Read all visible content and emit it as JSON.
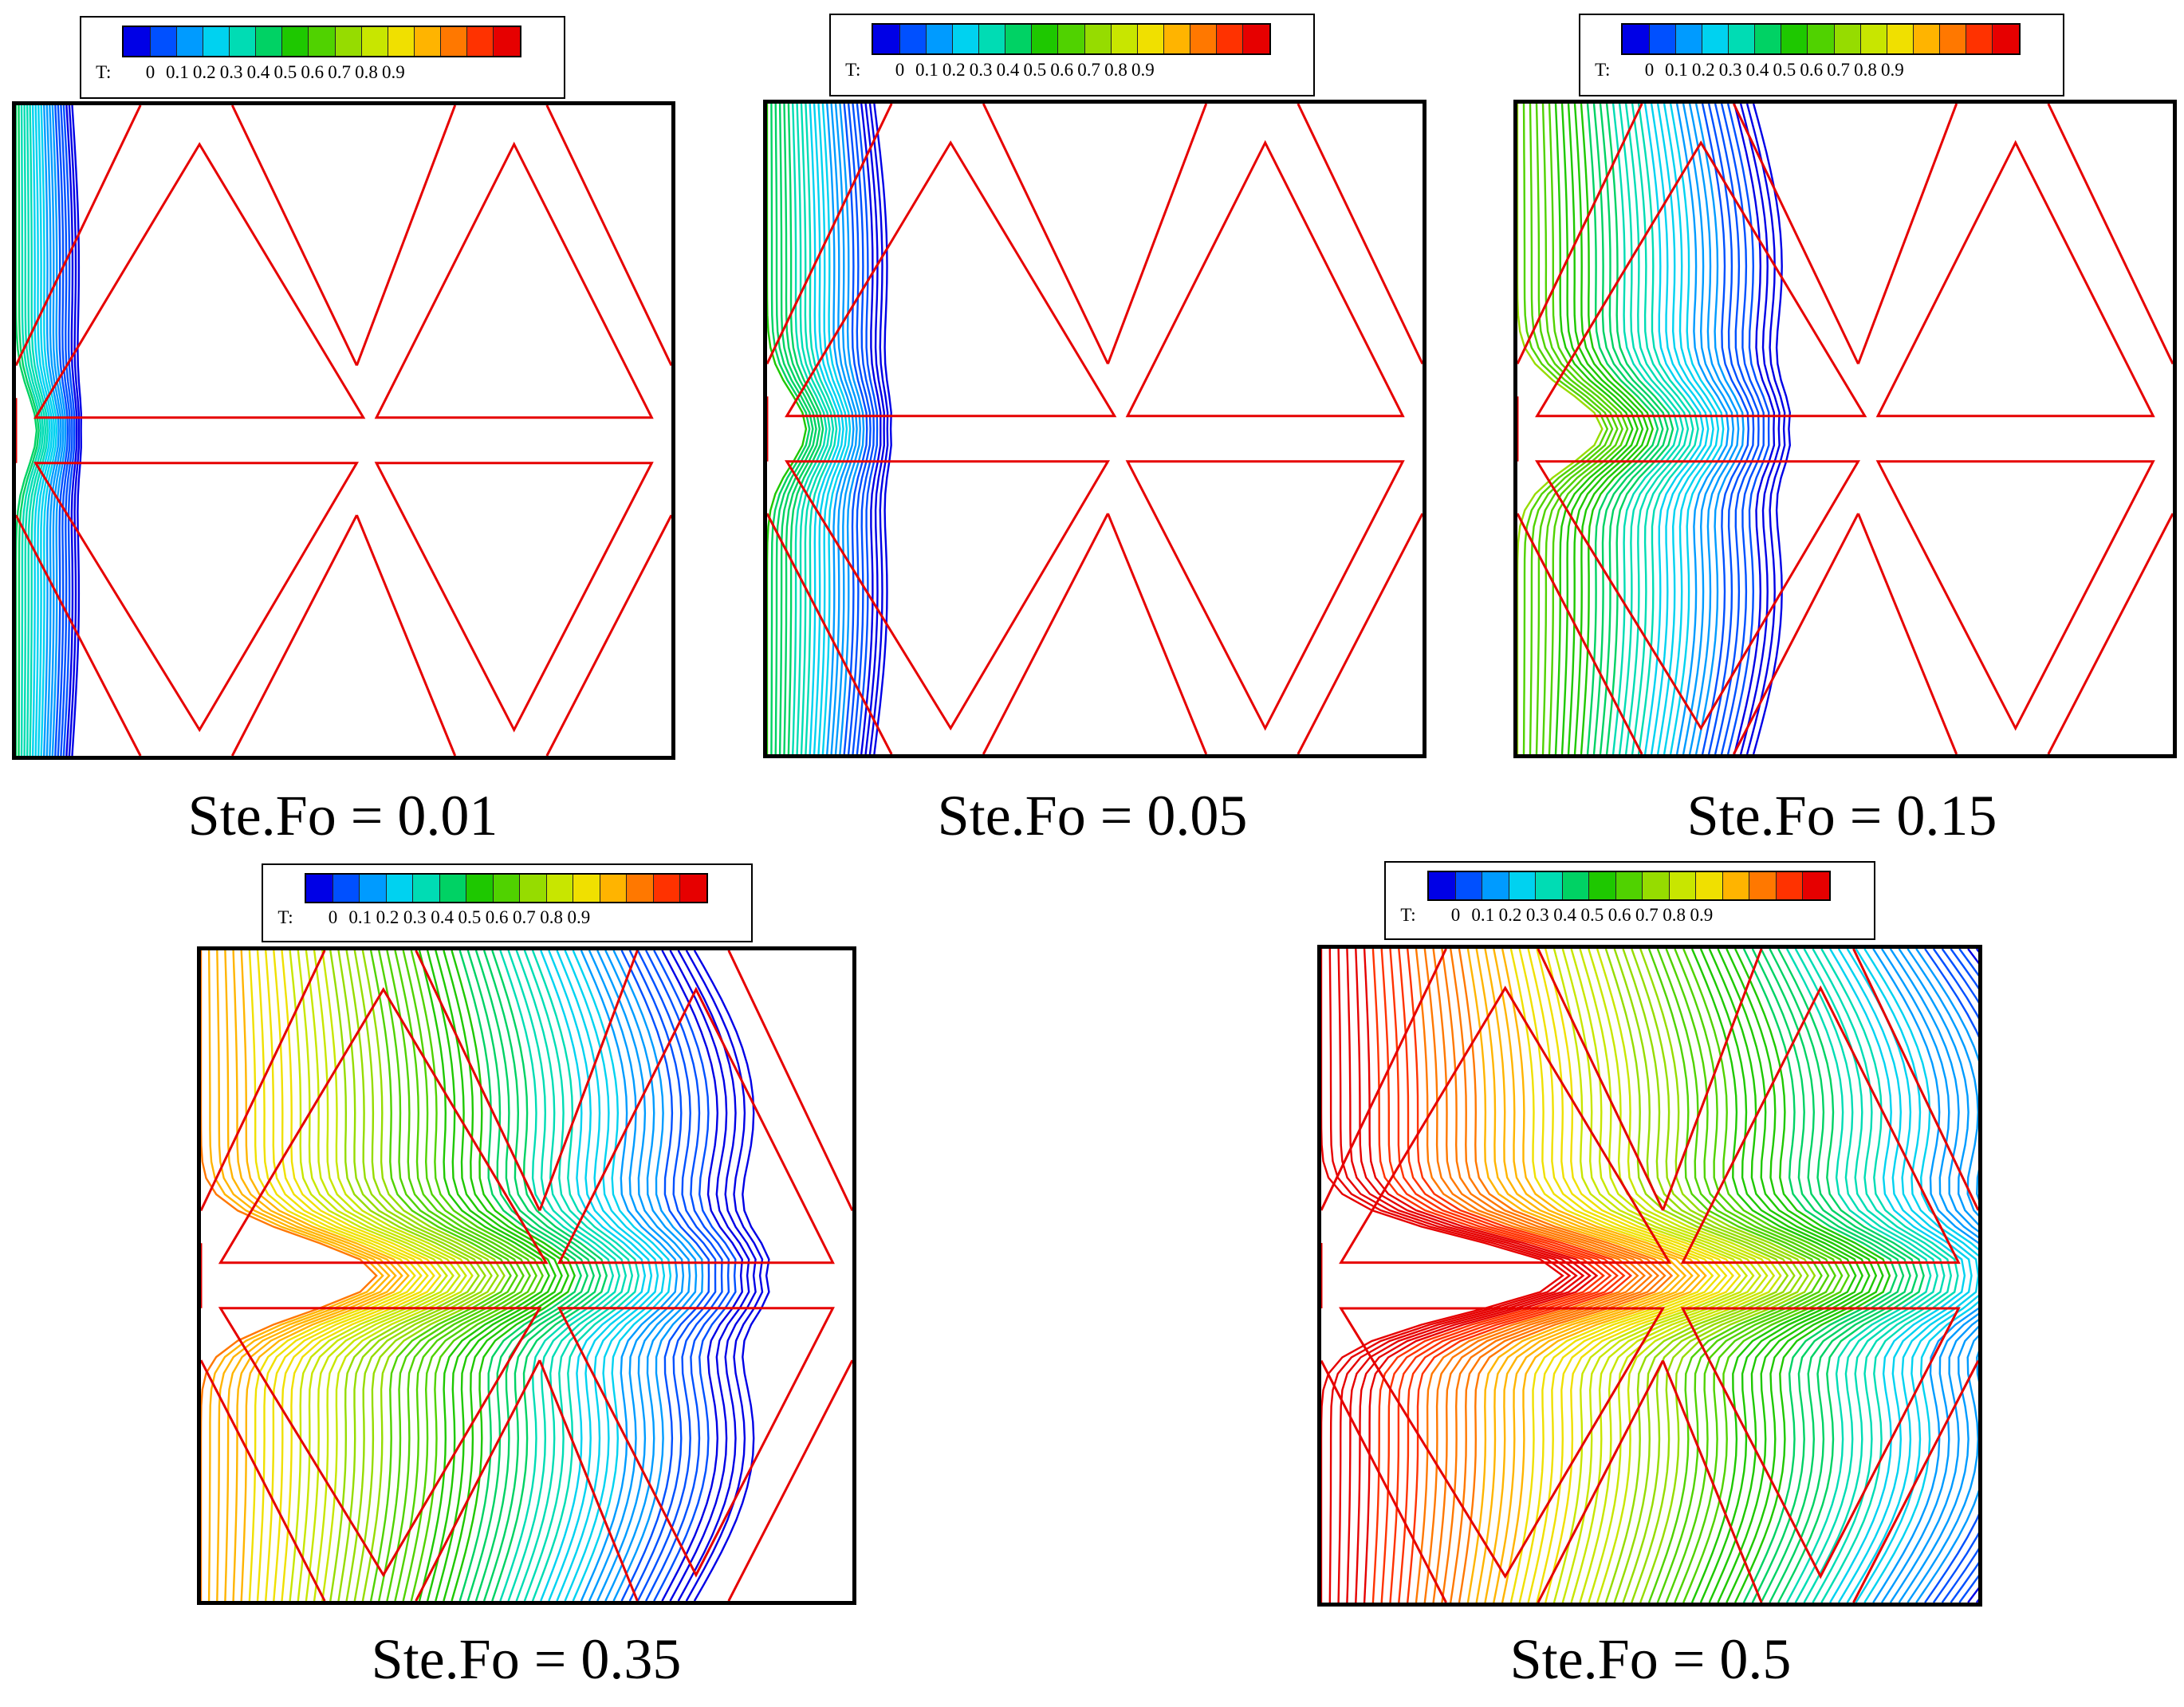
{
  "legend": {
    "variable": "T:",
    "ticks": [
      "0",
      "0.1",
      "0.2",
      "0.3",
      "0.4",
      "0.5",
      "0.6",
      "0.7",
      "0.8",
      "0.9"
    ],
    "colors": [
      "#0000e6",
      "#0050ff",
      "#009bff",
      "#00d2f0",
      "#00dcb4",
      "#00d264",
      "#1ec800",
      "#50d200",
      "#96dc00",
      "#c8e600",
      "#f0e000",
      "#ffb400",
      "#ff7800",
      "#ff3200",
      "#e60000"
    ]
  },
  "panels": [
    {
      "caption": "Ste.Fo = 0.01",
      "progress": 0.01
    },
    {
      "caption": "Ste.Fo = 0.05",
      "progress": 0.05
    },
    {
      "caption": "Ste.Fo = 0.15",
      "progress": 0.15
    },
    {
      "caption": "Ste.Fo = 0.35",
      "progress": 0.35
    },
    {
      "caption": "Ste.Fo = 0.5",
      "progress": 0.5
    }
  ],
  "colors": {
    "fin_outline": "#e60000",
    "frame": "#000000",
    "cold_contour": "#0000e6"
  }
}
